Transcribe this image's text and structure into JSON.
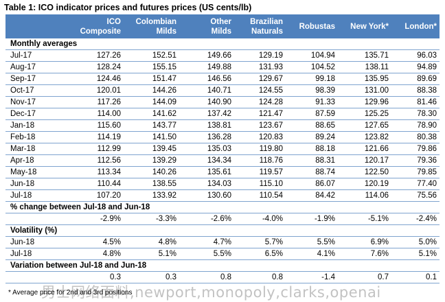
{
  "caption": "Table 1:  ICO indicator prices and futures prices (US cents/lb)",
  "columns": [
    {
      "line1": "",
      "line2": ""
    },
    {
      "line1": "ICO",
      "line2": "Composite"
    },
    {
      "line1": "Colombian",
      "line2": "Milds"
    },
    {
      "line1": "Other",
      "line2": "Milds"
    },
    {
      "line1": "Brazilian",
      "line2": "Naturals"
    },
    {
      "line1": "Robustas",
      "line2": ""
    },
    {
      "line1": "New York*",
      "line2": ""
    },
    {
      "line1": "London*",
      "line2": ""
    }
  ],
  "sections": {
    "monthly": "Monthly averages",
    "pct_change": "% change between Jul-18 and Jun-18",
    "volatility": "Volatility (%)",
    "variation": "Variation between Jul-18 and Jun-18"
  },
  "monthly_rows": [
    [
      "Jul-17",
      "127.26",
      "152.51",
      "149.66",
      "129.19",
      "104.94",
      "135.71",
      "96.03"
    ],
    [
      "Aug-17",
      "128.24",
      "155.15",
      "149.88",
      "131.93",
      "104.52",
      "138.11",
      "94.89"
    ],
    [
      "Sep-17",
      "124.46",
      "151.47",
      "146.56",
      "129.67",
      "99.18",
      "135.95",
      "89.69"
    ],
    [
      "Oct-17",
      "120.01",
      "144.26",
      "140.71",
      "124.55",
      "98.39",
      "131.00",
      "88.38"
    ],
    [
      "Nov-17",
      "117.26",
      "144.09",
      "140.90",
      "124.28",
      "91.33",
      "129.96",
      "81.46"
    ],
    [
      "Dec-17",
      "114.00",
      "141.62",
      "137.42",
      "121.47",
      "87.59",
      "125.25",
      "78.30"
    ],
    [
      "Jan-18",
      "115.60",
      "143.77",
      "138.81",
      "123.67",
      "88.65",
      "127.65",
      "78.90"
    ],
    [
      "Feb-18",
      "114.19",
      "141.50",
      "136.28",
      "120.83",
      "89.24",
      "123.82",
      "80.38"
    ],
    [
      "Mar-18",
      "112.99",
      "139.45",
      "135.03",
      "119.80",
      "88.18",
      "121.66",
      "79.86"
    ],
    [
      "Apr-18",
      "112.56",
      "139.29",
      "134.34",
      "118.76",
      "88.31",
      "120.17",
      "79.36"
    ],
    [
      "May-18",
      "113.34",
      "140.26",
      "135.61",
      "119.57",
      "88.74",
      "122.50",
      "79.85"
    ],
    [
      "Jun-18",
      "110.44",
      "138.55",
      "134.03",
      "115.10",
      "86.07",
      "120.19",
      "77.40"
    ],
    [
      "Jul-18",
      "107.20",
      "133.92",
      "130.60",
      "110.54",
      "84.42",
      "114.06",
      "75.56"
    ]
  ],
  "pct_change_row": [
    "",
    "-2.9%",
    "-3.3%",
    "-2.6%",
    "-4.0%",
    "-1.9%",
    "-5.1%",
    "-2.4%"
  ],
  "volatility_rows": [
    [
      "Jun-18",
      "4.5%",
      "4.8%",
      "4.7%",
      "5.7%",
      "5.5%",
      "6.9%",
      "5.0%"
    ],
    [
      "Jul-18",
      "4.8%",
      "5.1%",
      "5.5%",
      "6.5%",
      "4.1%",
      "7.6%",
      "5.1%"
    ]
  ],
  "variation_row": [
    "",
    "0.3",
    "0.3",
    "0.8",
    "0.8",
    "-1.4",
    "0.7",
    "0.1"
  ],
  "footnote": "* Average price for 2nd and 3rd positions",
  "watermark": "男士网络面料,newport,monopoly,clarks,openai",
  "colors": {
    "header_bg": "#4f81bd",
    "header_text": "#ffffff",
    "row_rule": "#7ea3cf"
  }
}
